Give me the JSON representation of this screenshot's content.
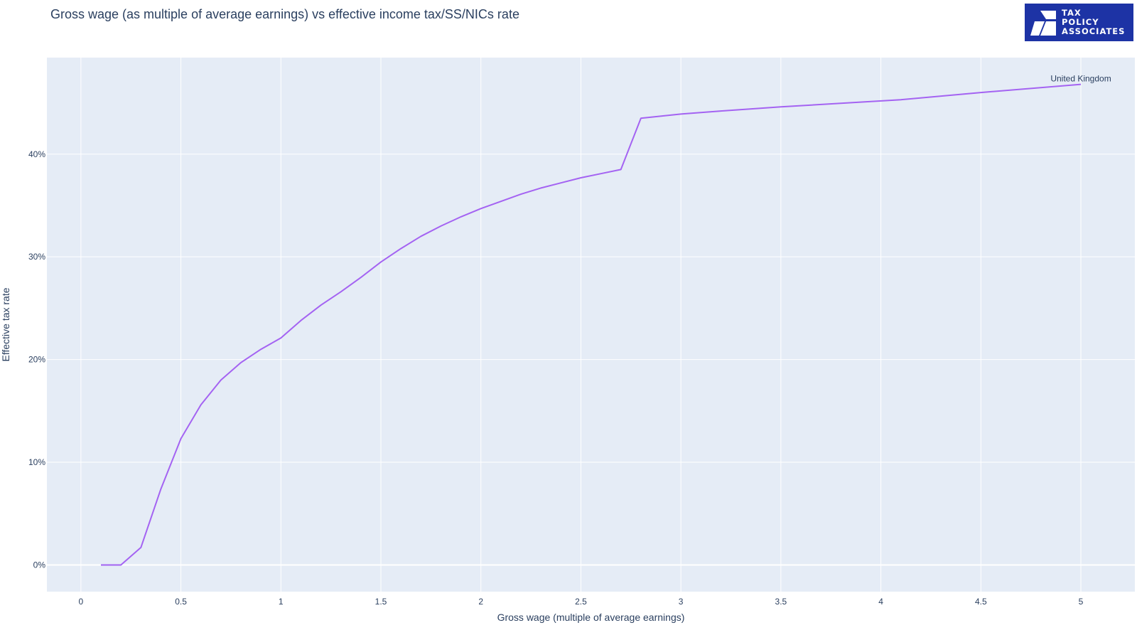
{
  "title": "Gross wage (as multiple of average earnings) vs effective income tax/SS/NICs rate",
  "logo": {
    "lines": [
      "TAX",
      "POLICY",
      "ASSOCIATES"
    ],
    "icon": "tax-policy-associates-logo-icon",
    "background": "#1d33a5"
  },
  "colors": {
    "plot_bg": "#e5ecf6",
    "grid": "#ffffff",
    "line": "#a463f2",
    "text": "#2a3f5f"
  },
  "chart_data": {
    "type": "line",
    "title": "Gross wage (as multiple of average earnings) vs effective income tax/SS/NICs rate",
    "xlabel": "Gross wage (multiple of average earnings)",
    "ylabel": "Effective tax rate",
    "xlim": [
      -0.17,
      5.27
    ],
    "ylim": [
      -2.6,
      49.4
    ],
    "x_ticks": [
      0,
      0.5,
      1,
      1.5,
      2,
      2.5,
      3,
      3.5,
      4,
      4.5,
      5
    ],
    "x_tick_labels": [
      "0",
      "0.5",
      "1",
      "1.5",
      "2",
      "2.5",
      "3",
      "3.5",
      "4",
      "4.5",
      "5"
    ],
    "y_ticks": [
      0,
      10,
      20,
      30,
      40
    ],
    "y_tick_labels": [
      "0%",
      "10%",
      "20%",
      "30%",
      "40%"
    ],
    "grid": true,
    "legend": "none",
    "series": [
      {
        "name": "United Kingdom",
        "x": [
          0.1,
          0.2,
          0.3,
          0.4,
          0.5,
          0.6,
          0.7,
          0.8,
          0.9,
          1.0,
          1.1,
          1.2,
          1.3,
          1.4,
          1.5,
          1.6,
          1.7,
          1.8,
          1.9,
          2.0,
          2.1,
          2.2,
          2.3,
          2.4,
          2.5,
          2.6,
          2.7,
          2.8,
          3.0,
          3.2,
          3.5,
          4.1,
          4.5,
          5.0
        ],
        "y": [
          0,
          0,
          1.7,
          7.4,
          12.3,
          15.6,
          18.0,
          19.7,
          21.0,
          22.1,
          23.8,
          25.3,
          26.6,
          28.0,
          29.5,
          30.8,
          32.0,
          33.0,
          33.9,
          34.7,
          35.4,
          36.1,
          36.7,
          37.2,
          37.7,
          38.1,
          38.5,
          43.5,
          43.9,
          44.2,
          44.6,
          45.3,
          46.0,
          46.8
        ]
      }
    ],
    "annotations": [
      {
        "text": "United Kingdom",
        "x": 5.0,
        "y": 46.8
      }
    ]
  }
}
